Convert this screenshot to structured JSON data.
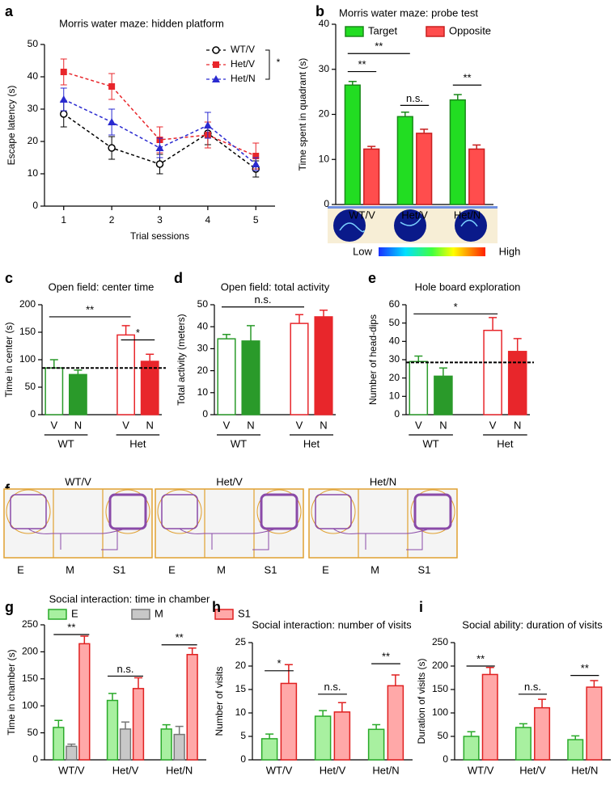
{
  "chart_data": [
    {
      "panel": "a",
      "type": "line",
      "title": "Morris water maze: hidden platform",
      "xlabel": "Trial sessions",
      "ylabel": "Escape latency (s)",
      "x": [
        1,
        2,
        3,
        4,
        5
      ],
      "xlim": [
        0.6,
        5.4
      ],
      "xticks": [
        1,
        2,
        3,
        4,
        5
      ],
      "ylim": [
        0,
        50
      ],
      "yticks": [
        0,
        10,
        20,
        30,
        40,
        50
      ],
      "series": [
        {
          "name": "WT/V",
          "color": "#000000",
          "marker": "circle",
          "values": [
            28.5,
            18,
            13,
            22.5,
            11.5
          ],
          "errors": [
            4,
            3.5,
            3,
            3.5,
            2.5
          ]
        },
        {
          "name": "Het/V",
          "color": "#e8262b",
          "marker": "square",
          "values": [
            41.5,
            37,
            20.5,
            22,
            15.5
          ],
          "errors": [
            4,
            4,
            4,
            4,
            4
          ]
        },
        {
          "name": "Het/N",
          "color": "#2a2ad0",
          "marker": "triangle",
          "values": [
            33,
            26,
            18,
            25,
            13
          ],
          "errors": [
            3.5,
            4,
            3,
            4,
            2
          ]
        }
      ],
      "legend": "upper right",
      "annotations": [
        "*"
      ]
    },
    {
      "panel": "b",
      "type": "bar",
      "title": "Morris water maze: probe test",
      "ylabel": "Time spent in quadrant (s)",
      "categories": [
        "WT/V",
        "Het/V",
        "Het/N"
      ],
      "ylim": [
        0,
        40
      ],
      "yticks": [
        0,
        10,
        20,
        30,
        40
      ],
      "series": [
        {
          "name": "Target",
          "color": "#22dd22",
          "edge": "#1a8a1a",
          "values": [
            26.5,
            19.5,
            23.2
          ],
          "errors": [
            0.8,
            1,
            1.2
          ]
        },
        {
          "name": "Opposite",
          "color": "#ff4d4d",
          "edge": "#c81e1e",
          "values": [
            12.3,
            15.8,
            12.3
          ],
          "errors": [
            0.6,
            0.9,
            0.9
          ]
        }
      ],
      "legend": "top",
      "annotations": [
        "**",
        "**",
        "n.s.",
        "**"
      ],
      "colorbar": [
        "Low",
        "High"
      ]
    },
    {
      "panel": "c",
      "type": "bar",
      "title": "Open field: center time",
      "ylabel": "Time in center (s)",
      "categories": [
        "V",
        "N",
        "V",
        "N"
      ],
      "groups": [
        "WT",
        "Het"
      ],
      "values": [
        85,
        73,
        145,
        97
      ],
      "errors": [
        15,
        8,
        17,
        13
      ],
      "colors": [
        "#2a9a2a",
        "#2a9a2a",
        "#e8262b",
        "#e8262b"
      ],
      "filled": [
        false,
        true,
        false,
        true
      ],
      "reference_line": 85,
      "ylim": [
        0,
        200
      ],
      "yticks": [
        0,
        50,
        100,
        150,
        200
      ],
      "annotations": [
        "**",
        "*"
      ]
    },
    {
      "panel": "d",
      "type": "bar",
      "title": "Open field: total activity",
      "ylabel": "Total activity (meters)",
      "categories": [
        "V",
        "N",
        "V",
        "N"
      ],
      "groups": [
        "WT",
        "Het"
      ],
      "values": [
        34.5,
        33.5,
        41.5,
        44.5
      ],
      "errors": [
        2,
        7,
        4,
        3
      ],
      "colors": [
        "#2a9a2a",
        "#2a9a2a",
        "#e8262b",
        "#e8262b"
      ],
      "filled": [
        false,
        true,
        false,
        true
      ],
      "ylim": [
        0,
        50
      ],
      "yticks": [
        0,
        10,
        20,
        30,
        40,
        50
      ],
      "annotations": [
        "n.s."
      ]
    },
    {
      "panel": "e",
      "type": "bar",
      "title": "Hole board exploration",
      "ylabel": "Number of head-dips",
      "categories": [
        "V",
        "N",
        "V",
        "N"
      ],
      "groups": [
        "WT",
        "Het"
      ],
      "values": [
        29,
        21,
        46,
        34.5
      ],
      "errors": [
        3,
        4.5,
        7,
        7
      ],
      "colors": [
        "#2a9a2a",
        "#2a9a2a",
        "#e8262b",
        "#e8262b"
      ],
      "filled": [
        false,
        true,
        false,
        true
      ],
      "reference_line": 28.5,
      "ylim": [
        0,
        60
      ],
      "yticks": [
        0,
        10,
        20,
        30,
        40,
        50,
        60
      ],
      "annotations": [
        "*"
      ]
    },
    {
      "panel": "f",
      "type": "tracking",
      "arenas": [
        {
          "title": "WT/V",
          "chambers": [
            "E",
            "M",
            "S1"
          ]
        },
        {
          "title": "Het/V",
          "chambers": [
            "E",
            "M",
            "S1"
          ]
        },
        {
          "title": "Het/N",
          "chambers": [
            "E",
            "M",
            "S1"
          ]
        }
      ]
    },
    {
      "panel": "g",
      "type": "bar",
      "title": "Social interaction: time in chamber",
      "ylabel": "Time in chamber (s)",
      "categories": [
        "WT/V",
        "Het/V",
        "Het/N"
      ],
      "ylim": [
        0,
        250
      ],
      "yticks": [
        0,
        50,
        100,
        150,
        200,
        250
      ],
      "series": [
        {
          "name": "E",
          "color": "#a8f0a0",
          "edge": "#2aaa2a",
          "values": [
            60,
            110,
            57
          ],
          "errors": [
            13,
            13,
            8
          ]
        },
        {
          "name": "M",
          "color": "#c8c8c8",
          "edge": "#777777",
          "values": [
            25,
            57,
            47
          ],
          "errors": [
            4,
            13,
            15
          ]
        },
        {
          "name": "S1",
          "color": "#ffa8a8",
          "edge": "#e02020",
          "values": [
            215,
            132,
            195
          ],
          "errors": [
            14,
            20,
            12
          ]
        }
      ],
      "legend": "top",
      "annotations": [
        "**",
        "n.s.",
        "**"
      ]
    },
    {
      "panel": "h",
      "type": "bar",
      "title": "Social interaction: number of visits",
      "ylabel": "Number of visits",
      "categories": [
        "WT/V",
        "Het/V",
        "Het/N"
      ],
      "ylim": [
        0,
        25
      ],
      "yticks": [
        0,
        5,
        10,
        15,
        20,
        25
      ],
      "series": [
        {
          "color": "#a8f0a0",
          "edge": "#2aaa2a",
          "values": [
            4.5,
            9.3,
            6.5
          ],
          "errors": [
            1,
            1.2,
            1
          ]
        },
        {
          "color": "#ffa8a8",
          "edge": "#e02020",
          "values": [
            16.3,
            10.2,
            15.8
          ],
          "errors": [
            4,
            2,
            2.3
          ]
        }
      ],
      "annotations": [
        "*",
        "n.s.",
        "**"
      ]
    },
    {
      "panel": "i",
      "type": "bar",
      "title": "Social ability: duration of visits",
      "ylabel": "Duration of visits (s)",
      "categories": [
        "WT/V",
        "Het/V",
        "Het/N"
      ],
      "ylim": [
        0,
        250
      ],
      "yticks": [
        0,
        50,
        100,
        150,
        200,
        250
      ],
      "series": [
        {
          "color": "#a8f0a0",
          "edge": "#2aaa2a",
          "values": [
            50,
            69,
            43
          ],
          "errors": [
            10,
            8,
            8
          ]
        },
        {
          "color": "#ffa8a8",
          "edge": "#e02020",
          "values": [
            182,
            111,
            155
          ],
          "errors": [
            15,
            18,
            14
          ]
        }
      ],
      "annotations": [
        "**",
        "n.s.",
        "**"
      ]
    }
  ]
}
